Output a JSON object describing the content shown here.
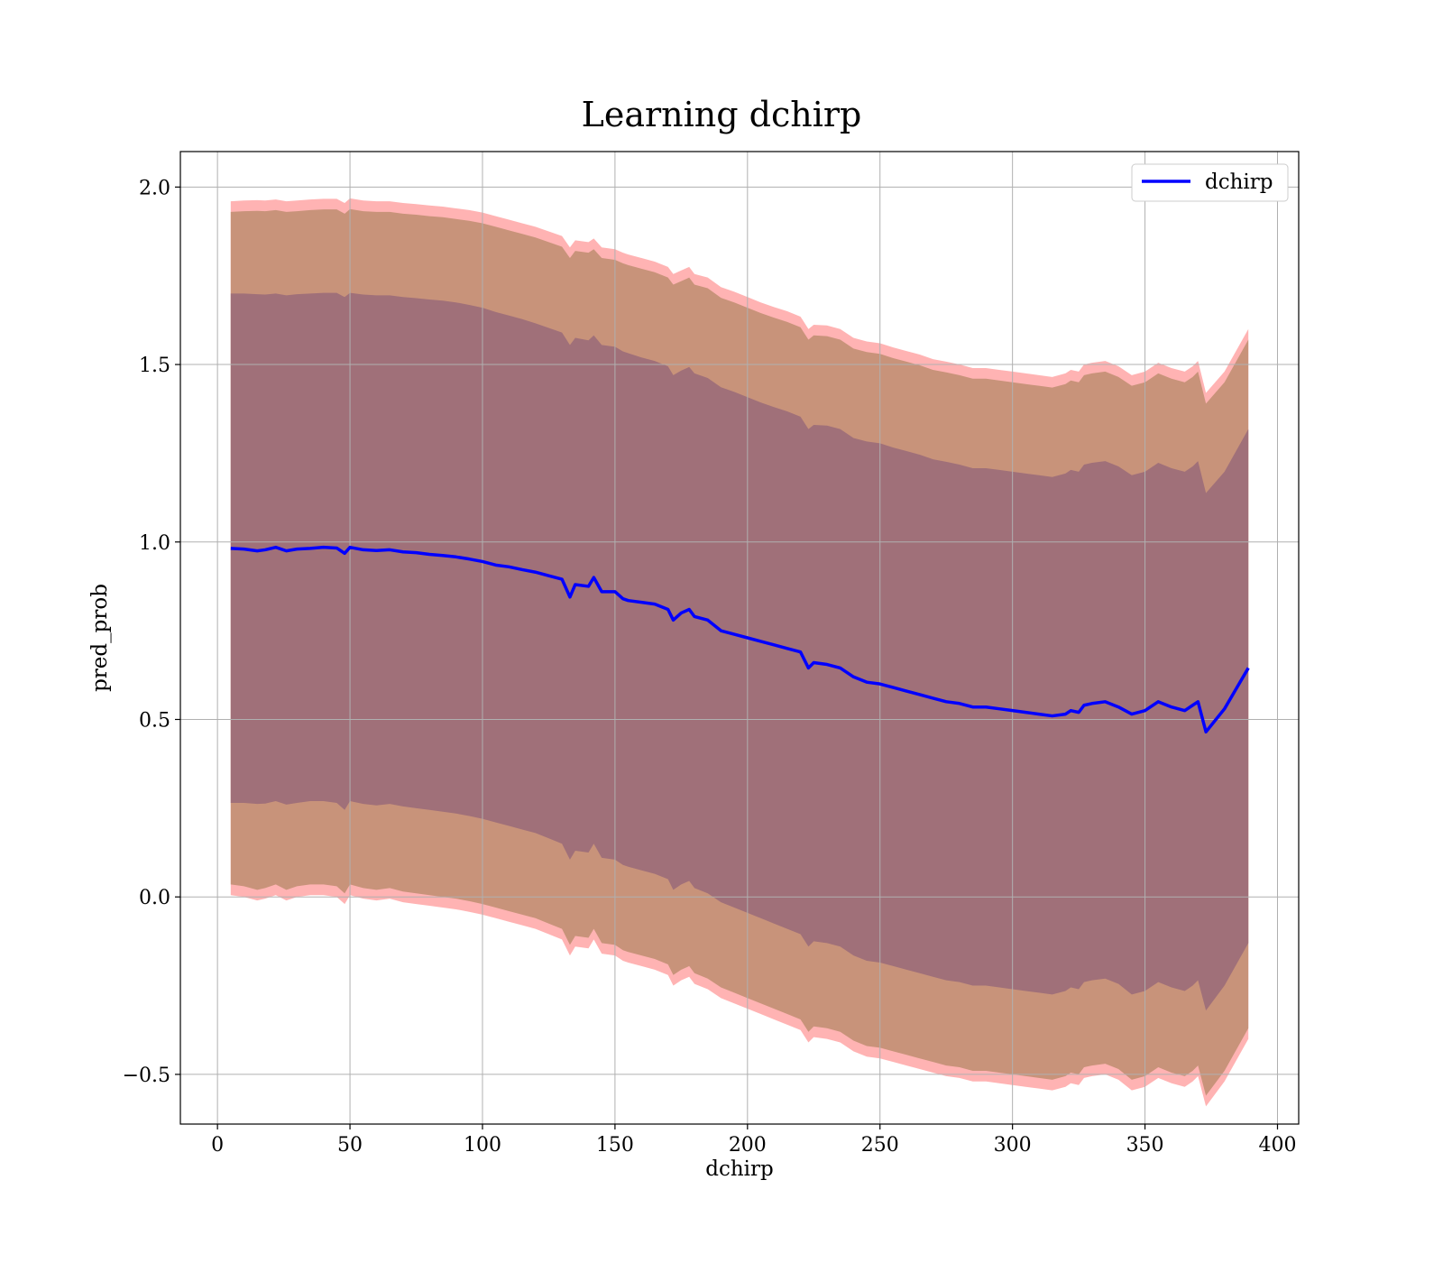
{
  "chart_data": {
    "type": "line",
    "title": "Learning dchirp",
    "xlabel": "dchirp",
    "ylabel": "pred_prob",
    "xlim": [
      -14,
      408
    ],
    "ylim": [
      -0.64,
      2.1
    ],
    "x_ticks": [
      0,
      50,
      100,
      150,
      200,
      250,
      300,
      350,
      400
    ],
    "x_tick_labels": [
      "0",
      "50",
      "100",
      "150",
      "200",
      "250",
      "300",
      "350",
      "400"
    ],
    "y_ticks": [
      -0.5,
      0.0,
      0.5,
      1.0,
      1.5,
      2.0
    ],
    "y_tick_labels": [
      "−0.5",
      "0.0",
      "0.5",
      "1.0",
      "1.5",
      "2.0"
    ],
    "grid": true,
    "legend": {
      "position": "top-right",
      "entries": [
        "dchirp"
      ]
    },
    "colors": {
      "line": "#0000ff",
      "band_outer": "#ff9a9a",
      "band_middle": "#c8937a",
      "band_inner": "#a07079",
      "grid": "#b0b0b0"
    },
    "series": [
      {
        "name": "dchirp",
        "x": [
          5,
          10,
          15,
          18,
          22,
          26,
          30,
          35,
          40,
          45,
          48,
          50,
          55,
          60,
          65,
          70,
          75,
          80,
          85,
          90,
          95,
          100,
          105,
          110,
          115,
          120,
          125,
          130,
          133,
          135,
          140,
          142,
          145,
          150,
          153,
          155,
          160,
          165,
          170,
          172,
          175,
          178,
          180,
          185,
          190,
          195,
          200,
          205,
          210,
          215,
          220,
          223,
          225,
          230,
          235,
          240,
          245,
          250,
          255,
          260,
          265,
          270,
          275,
          280,
          285,
          290,
          295,
          300,
          305,
          310,
          315,
          320,
          322,
          325,
          327,
          330,
          335,
          340,
          345,
          350,
          355,
          360,
          365,
          368,
          370,
          373,
          380,
          389
        ],
        "y": [
          0.982,
          0.98,
          0.975,
          0.978,
          0.985,
          0.975,
          0.98,
          0.982,
          0.985,
          0.983,
          0.968,
          0.985,
          0.978,
          0.976,
          0.978,
          0.972,
          0.97,
          0.965,
          0.962,
          0.958,
          0.952,
          0.945,
          0.935,
          0.93,
          0.922,
          0.915,
          0.905,
          0.895,
          0.845,
          0.88,
          0.875,
          0.9,
          0.86,
          0.86,
          0.84,
          0.835,
          0.83,
          0.825,
          0.81,
          0.78,
          0.8,
          0.81,
          0.79,
          0.78,
          0.75,
          0.74,
          0.73,
          0.72,
          0.71,
          0.7,
          0.69,
          0.645,
          0.66,
          0.655,
          0.645,
          0.62,
          0.605,
          0.6,
          0.59,
          0.58,
          0.57,
          0.56,
          0.55,
          0.545,
          0.535,
          0.535,
          0.53,
          0.525,
          0.52,
          0.515,
          0.51,
          0.515,
          0.525,
          0.52,
          0.54,
          0.545,
          0.55,
          0.535,
          0.515,
          0.525,
          0.55,
          0.535,
          0.525,
          0.54,
          0.55,
          0.465,
          0.53,
          0.645
        ]
      }
    ],
    "bands": [
      {
        "upper": [
          1.96,
          1.962,
          1.963,
          1.962,
          1.965,
          1.96,
          1.962,
          1.965,
          1.967,
          1.967,
          1.955,
          1.968,
          1.962,
          1.96,
          1.96,
          1.955,
          1.952,
          1.948,
          1.945,
          1.94,
          1.935,
          1.928,
          1.918,
          1.908,
          1.898,
          1.888,
          1.875,
          1.862,
          1.83,
          1.85,
          1.845,
          1.855,
          1.83,
          1.825,
          1.815,
          1.81,
          1.8,
          1.79,
          1.775,
          1.755,
          1.765,
          1.775,
          1.755,
          1.745,
          1.718,
          1.705,
          1.69,
          1.675,
          1.662,
          1.65,
          1.635,
          1.6,
          1.612,
          1.61,
          1.6,
          1.575,
          1.565,
          1.56,
          1.548,
          1.538,
          1.528,
          1.515,
          1.508,
          1.5,
          1.49,
          1.49,
          1.485,
          1.48,
          1.475,
          1.47,
          1.465,
          1.475,
          1.485,
          1.48,
          1.5,
          1.505,
          1.51,
          1.495,
          1.47,
          1.48,
          1.505,
          1.49,
          1.48,
          1.495,
          1.51,
          1.42,
          1.48,
          1.6
        ],
        "lower": [
          0.005,
          0.0,
          -0.01,
          -0.005,
          0.005,
          -0.01,
          0.0,
          0.005,
          0.005,
          0.0,
          -0.02,
          0.005,
          -0.005,
          -0.01,
          -0.005,
          -0.015,
          -0.02,
          -0.025,
          -0.03,
          -0.035,
          -0.042,
          -0.05,
          -0.06,
          -0.07,
          -0.08,
          -0.09,
          -0.105,
          -0.12,
          -0.165,
          -0.14,
          -0.145,
          -0.12,
          -0.16,
          -0.165,
          -0.18,
          -0.185,
          -0.195,
          -0.205,
          -0.22,
          -0.25,
          -0.235,
          -0.225,
          -0.245,
          -0.26,
          -0.285,
          -0.3,
          -0.315,
          -0.33,
          -0.345,
          -0.36,
          -0.375,
          -0.41,
          -0.395,
          -0.4,
          -0.41,
          -0.435,
          -0.45,
          -0.455,
          -0.465,
          -0.475,
          -0.485,
          -0.495,
          -0.505,
          -0.51,
          -0.52,
          -0.52,
          -0.525,
          -0.53,
          -0.535,
          -0.54,
          -0.545,
          -0.535,
          -0.525,
          -0.53,
          -0.51,
          -0.505,
          -0.5,
          -0.515,
          -0.545,
          -0.535,
          -0.51,
          -0.525,
          -0.535,
          -0.52,
          -0.505,
          -0.59,
          -0.52,
          -0.4
        ],
        "color": "#ff9a9a",
        "opacity": 0.75
      },
      {
        "upper": [
          1.93,
          1.932,
          1.933,
          1.932,
          1.935,
          1.93,
          1.932,
          1.935,
          1.937,
          1.937,
          1.925,
          1.938,
          1.932,
          1.93,
          1.93,
          1.925,
          1.922,
          1.918,
          1.915,
          1.91,
          1.905,
          1.898,
          1.888,
          1.878,
          1.868,
          1.858,
          1.845,
          1.832,
          1.8,
          1.82,
          1.815,
          1.825,
          1.8,
          1.795,
          1.785,
          1.78,
          1.77,
          1.76,
          1.745,
          1.725,
          1.735,
          1.745,
          1.725,
          1.715,
          1.688,
          1.675,
          1.66,
          1.645,
          1.632,
          1.62,
          1.605,
          1.57,
          1.582,
          1.58,
          1.57,
          1.545,
          1.535,
          1.53,
          1.518,
          1.508,
          1.498,
          1.485,
          1.478,
          1.47,
          1.46,
          1.46,
          1.455,
          1.45,
          1.445,
          1.44,
          1.435,
          1.445,
          1.455,
          1.45,
          1.47,
          1.475,
          1.48,
          1.465,
          1.44,
          1.45,
          1.475,
          1.46,
          1.45,
          1.465,
          1.48,
          1.39,
          1.45,
          1.57
        ],
        "lower": [
          0.035,
          0.03,
          0.02,
          0.025,
          0.035,
          0.02,
          0.03,
          0.035,
          0.035,
          0.03,
          0.01,
          0.035,
          0.025,
          0.02,
          0.025,
          0.015,
          0.01,
          0.005,
          0.0,
          -0.005,
          -0.012,
          -0.02,
          -0.03,
          -0.04,
          -0.05,
          -0.06,
          -0.075,
          -0.09,
          -0.135,
          -0.11,
          -0.115,
          -0.09,
          -0.13,
          -0.135,
          -0.15,
          -0.155,
          -0.165,
          -0.175,
          -0.19,
          -0.22,
          -0.205,
          -0.195,
          -0.215,
          -0.23,
          -0.255,
          -0.27,
          -0.285,
          -0.3,
          -0.315,
          -0.33,
          -0.345,
          -0.38,
          -0.365,
          -0.37,
          -0.38,
          -0.405,
          -0.42,
          -0.425,
          -0.435,
          -0.445,
          -0.455,
          -0.465,
          -0.475,
          -0.48,
          -0.49,
          -0.49,
          -0.495,
          -0.5,
          -0.505,
          -0.51,
          -0.515,
          -0.505,
          -0.495,
          -0.5,
          -0.48,
          -0.475,
          -0.47,
          -0.485,
          -0.515,
          -0.505,
          -0.48,
          -0.495,
          -0.505,
          -0.49,
          -0.475,
          -0.56,
          -0.49,
          -0.37
        ],
        "color": "#c8937a",
        "opacity": 1.0
      },
      {
        "upper": [
          1.7,
          1.7,
          1.698,
          1.697,
          1.7,
          1.695,
          1.698,
          1.7,
          1.702,
          1.702,
          1.69,
          1.702,
          1.697,
          1.695,
          1.695,
          1.69,
          1.687,
          1.683,
          1.68,
          1.675,
          1.668,
          1.66,
          1.648,
          1.638,
          1.628,
          1.616,
          1.603,
          1.59,
          1.555,
          1.575,
          1.568,
          1.582,
          1.555,
          1.55,
          1.537,
          1.532,
          1.52,
          1.51,
          1.495,
          1.47,
          1.483,
          1.493,
          1.475,
          1.462,
          1.436,
          1.423,
          1.408,
          1.393,
          1.38,
          1.368,
          1.353,
          1.318,
          1.33,
          1.328,
          1.318,
          1.293,
          1.283,
          1.278,
          1.266,
          1.256,
          1.246,
          1.233,
          1.226,
          1.218,
          1.208,
          1.208,
          1.203,
          1.198,
          1.193,
          1.188,
          1.183,
          1.193,
          1.203,
          1.198,
          1.218,
          1.223,
          1.228,
          1.213,
          1.188,
          1.198,
          1.223,
          1.208,
          1.198,
          1.213,
          1.228,
          1.138,
          1.198,
          1.318
        ],
        "lower": [
          0.265,
          0.265,
          0.262,
          0.263,
          0.27,
          0.26,
          0.265,
          0.27,
          0.27,
          0.265,
          0.245,
          0.27,
          0.262,
          0.258,
          0.262,
          0.255,
          0.25,
          0.245,
          0.24,
          0.235,
          0.228,
          0.22,
          0.21,
          0.2,
          0.19,
          0.18,
          0.165,
          0.15,
          0.105,
          0.13,
          0.125,
          0.15,
          0.11,
          0.105,
          0.09,
          0.085,
          0.075,
          0.065,
          0.05,
          0.02,
          0.035,
          0.045,
          0.025,
          0.01,
          -0.015,
          -0.03,
          -0.045,
          -0.06,
          -0.075,
          -0.09,
          -0.105,
          -0.14,
          -0.125,
          -0.13,
          -0.14,
          -0.165,
          -0.18,
          -0.185,
          -0.195,
          -0.205,
          -0.215,
          -0.225,
          -0.235,
          -0.24,
          -0.25,
          -0.25,
          -0.255,
          -0.26,
          -0.265,
          -0.27,
          -0.275,
          -0.265,
          -0.255,
          -0.26,
          -0.24,
          -0.235,
          -0.23,
          -0.245,
          -0.275,
          -0.265,
          -0.24,
          -0.255,
          -0.265,
          -0.25,
          -0.235,
          -0.32,
          -0.25,
          -0.13
        ],
        "color": "#a07079",
        "opacity": 1.0
      }
    ]
  }
}
